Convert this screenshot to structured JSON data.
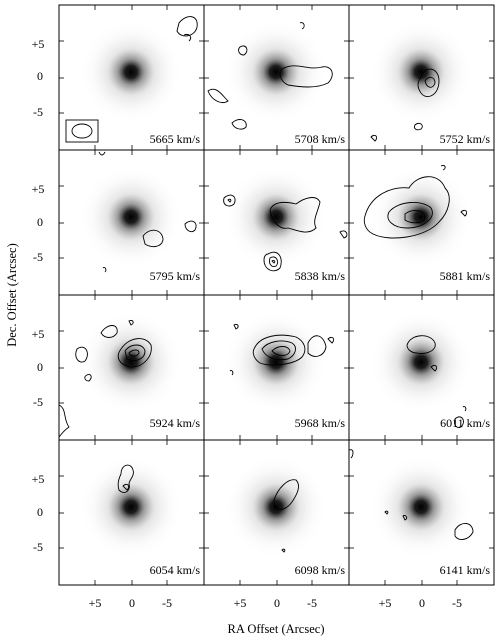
{
  "figure": {
    "xlabel": "RA Offset (Arcsec)",
    "ylabel": "Dec. Offset (Arcsec)",
    "x_tick_labels": [
      "+5",
      "0",
      "-5"
    ],
    "y_tick_labels": [
      "+5",
      "0",
      "-5"
    ]
  },
  "panels": [
    {
      "velocity": "5665 km/s"
    },
    {
      "velocity": "5708 km/s"
    },
    {
      "velocity": "5752 km/s"
    },
    {
      "velocity": "5795 km/s"
    },
    {
      "velocity": "5838 km/s"
    },
    {
      "velocity": "5881 km/s"
    },
    {
      "velocity": "5924 km/s"
    },
    {
      "velocity": "5968 km/s"
    },
    {
      "velocity": "6011 km/s"
    },
    {
      "velocity": "6054 km/s"
    },
    {
      "velocity": "6098 km/s"
    },
    {
      "velocity": "6141 km/s"
    }
  ]
}
